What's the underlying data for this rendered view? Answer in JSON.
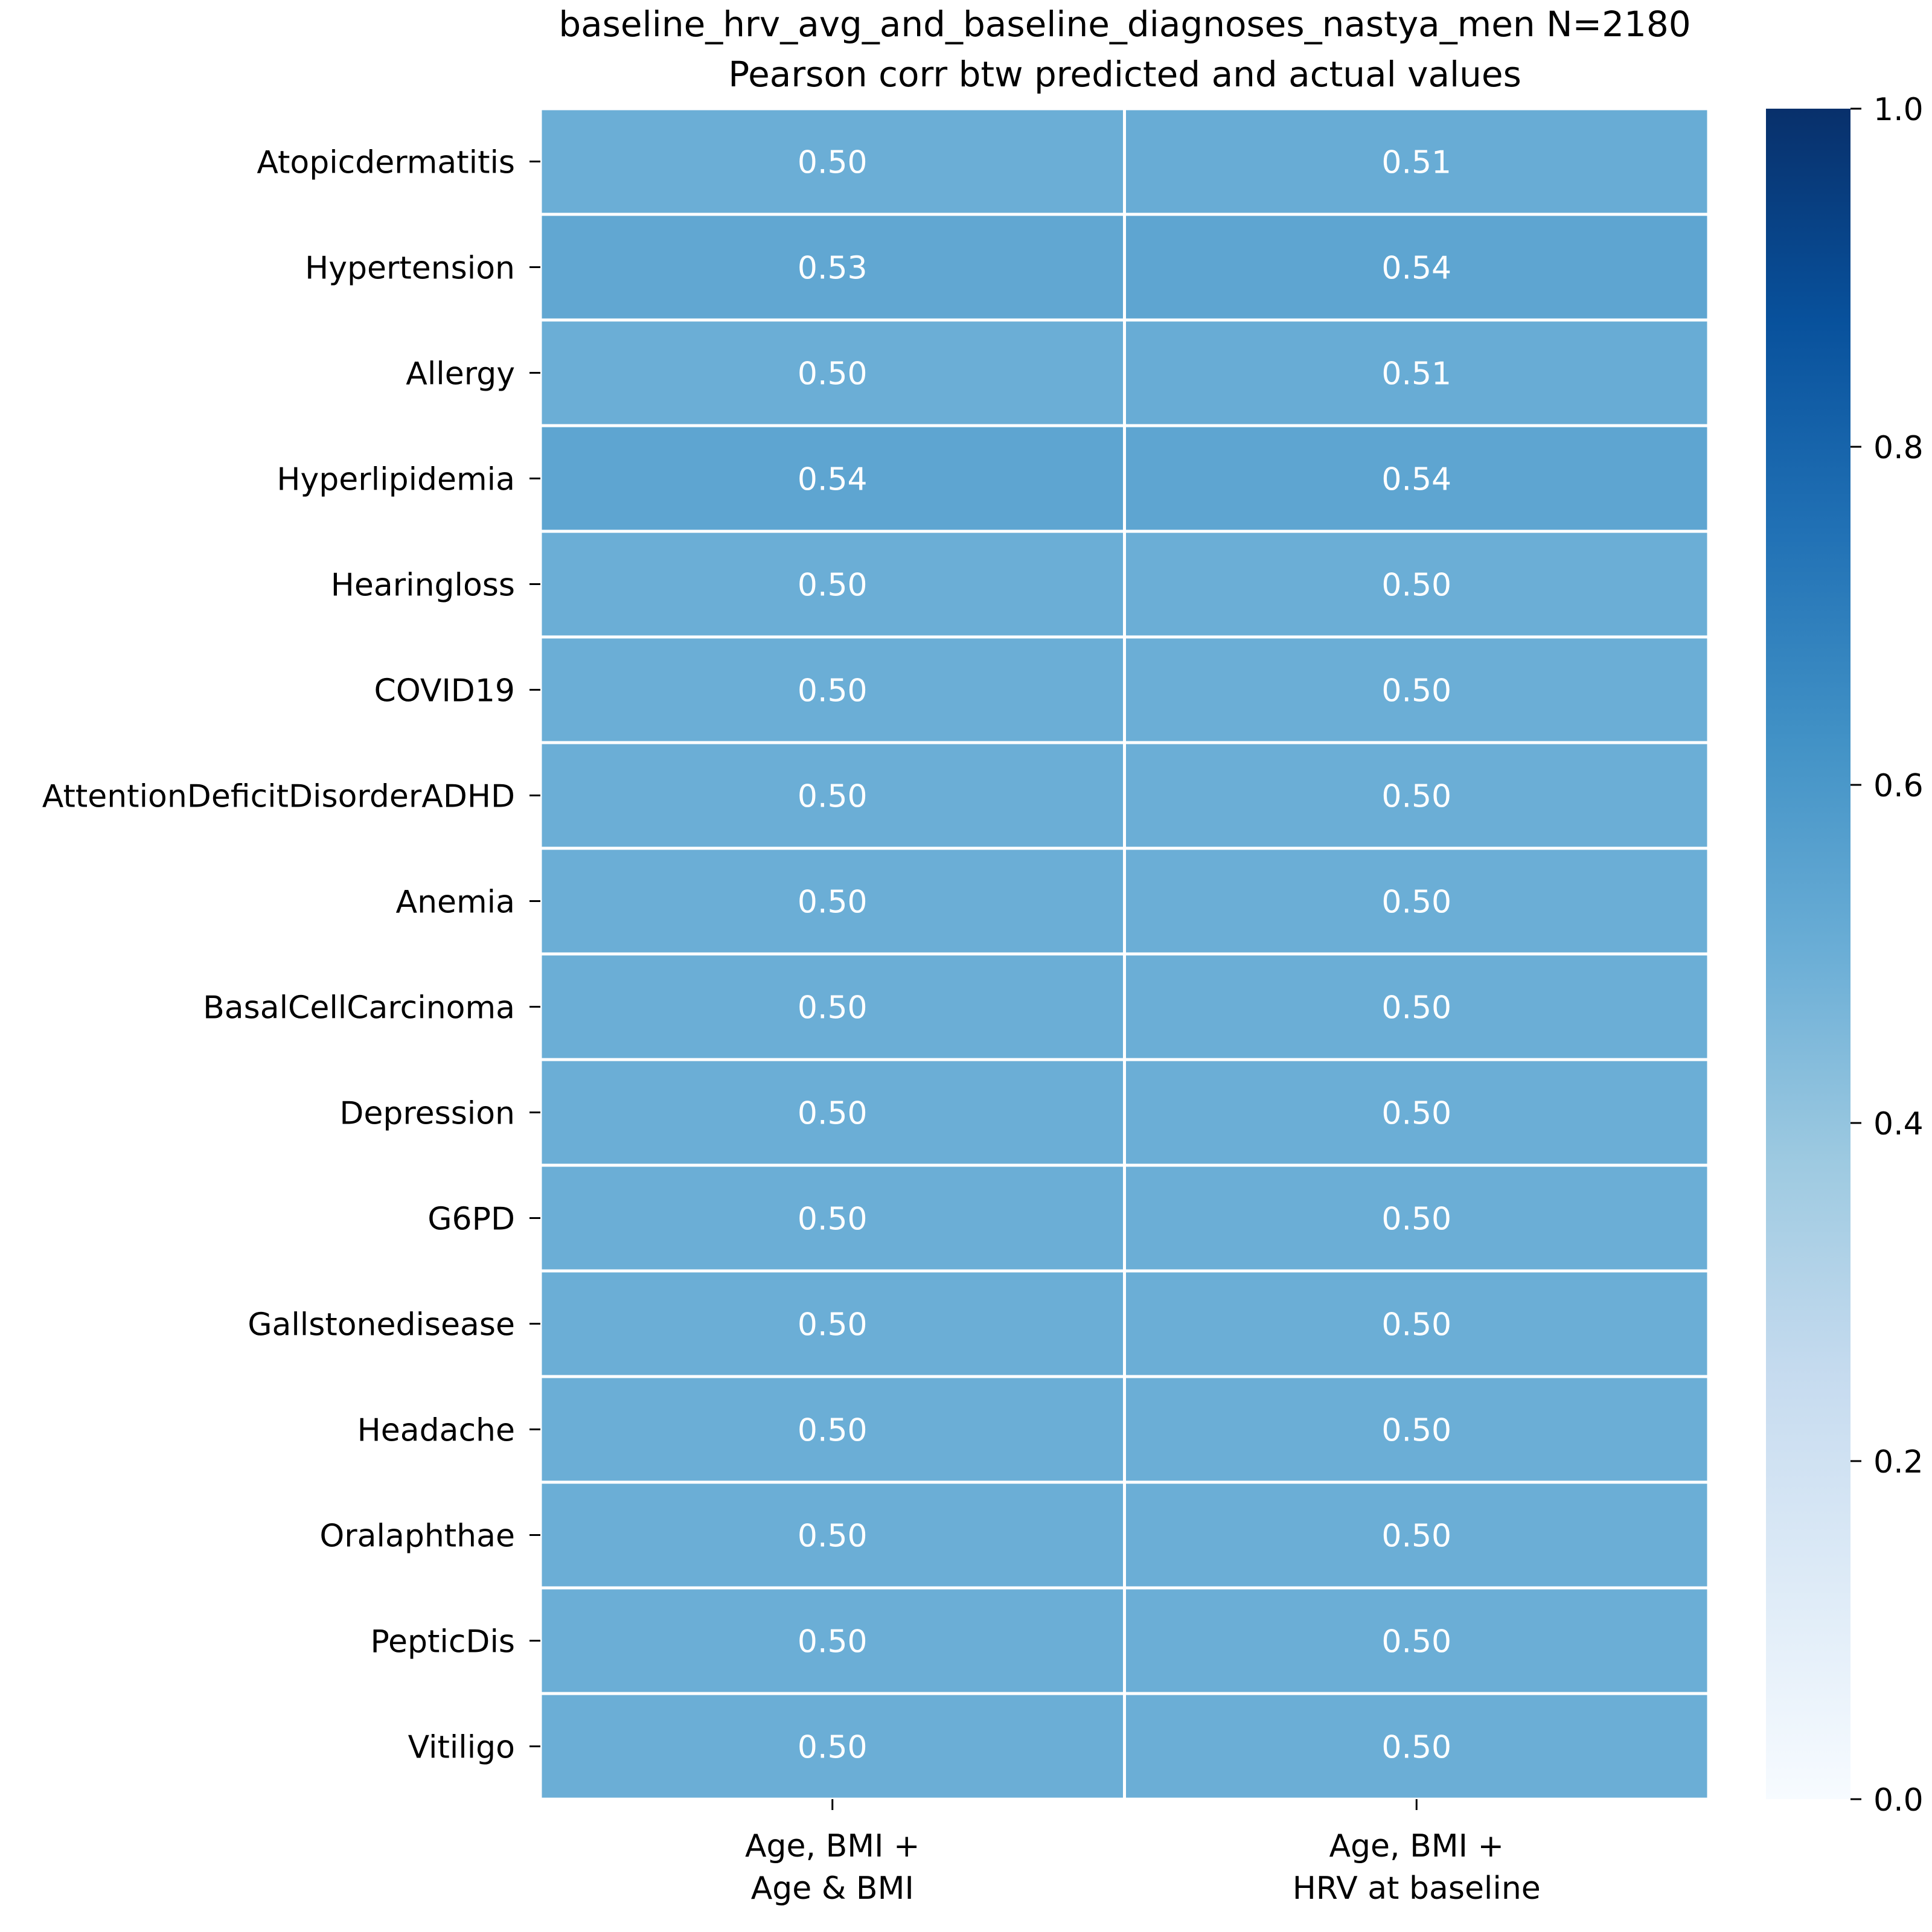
{
  "chart_data": {
    "type": "heatmap",
    "title_line1": "baseline_hrv_avg_and_baseline_diagnoses_nastya_men N=2180",
    "title_line2": "Pearson corr btw predicted and actual values",
    "columns": [
      {
        "line1": "Age, BMI +",
        "line2": "Age & BMI"
      },
      {
        "line1": "Age, BMI +",
        "line2": "HRV at baseline"
      }
    ],
    "rows": [
      "Atopicdermatitis",
      "Hypertension",
      "Allergy",
      "Hyperlipidemia",
      "Hearingloss",
      "COVID19",
      "AttentionDeficitDisorderADHD",
      "Anemia",
      "BasalCellCarcinoma",
      "Depression",
      "G6PD",
      "Gallstonedisease",
      "Headache",
      "Oralaphthae",
      "PepticDis",
      "Vitiligo"
    ],
    "values": [
      [
        0.5,
        0.51
      ],
      [
        0.53,
        0.54
      ],
      [
        0.5,
        0.51
      ],
      [
        0.54,
        0.54
      ],
      [
        0.5,
        0.5
      ],
      [
        0.5,
        0.5
      ],
      [
        0.5,
        0.5
      ],
      [
        0.5,
        0.5
      ],
      [
        0.5,
        0.5
      ],
      [
        0.5,
        0.5
      ],
      [
        0.5,
        0.5
      ],
      [
        0.5,
        0.5
      ],
      [
        0.5,
        0.5
      ],
      [
        0.5,
        0.5
      ],
      [
        0.5,
        0.5
      ],
      [
        0.5,
        0.5
      ]
    ],
    "colorbar": {
      "colormap": "Blues",
      "vmin": 0.0,
      "vmax": 1.0,
      "ticks": [
        "0.0",
        "0.2",
        "0.4",
        "0.6",
        "0.8",
        "1.0"
      ]
    },
    "annotation_color": "#ffffff"
  }
}
